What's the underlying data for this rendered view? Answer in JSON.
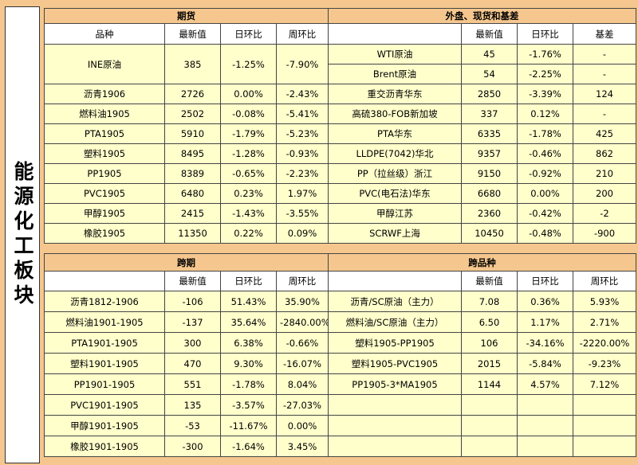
{
  "side_title": "能源化工板块",
  "colors": {
    "up": "#ff0000",
    "down": "#009933",
    "header_bg": "#f5c78e",
    "row_bg": "#ffffcc"
  },
  "futures": {
    "title": "期货",
    "columns": [
      "品种",
      "最新值",
      "日环比",
      "周环比"
    ],
    "rows": [
      [
        "INE原油",
        "385",
        "-1.25%",
        "-7.90%"
      ],
      [
        "沥青1906",
        "2726",
        "0.00%",
        "-2.43%"
      ],
      [
        "燃料油1905",
        "2502",
        "-0.08%",
        "-5.41%"
      ],
      [
        "PTA1905",
        "5910",
        "-1.79%",
        "-5.23%"
      ],
      [
        "塑料1905",
        "8495",
        "-1.28%",
        "-0.93%"
      ],
      [
        "PP1905",
        "8389",
        "-0.65%",
        "-2.23%"
      ],
      [
        "PVC1905",
        "6480",
        "0.23%",
        "1.97%"
      ],
      [
        "甲醇1905",
        "2415",
        "-1.43%",
        "-3.55%"
      ],
      [
        "橡胶1905",
        "11350",
        "0.22%",
        "0.09%"
      ]
    ]
  },
  "spot": {
    "title": "外盘、现货和基差",
    "columns": [
      "",
      "最新值",
      "日环比",
      "基差"
    ],
    "rows": [
      [
        "WTI原油",
        "45",
        "-1.76%",
        "-"
      ],
      [
        "Brent原油",
        "54",
        "-2.25%",
        "-"
      ],
      [
        "重交沥青华东",
        "2850",
        "-3.39%",
        "124"
      ],
      [
        "高硫380-FOB新加坡",
        "337",
        "0.12%",
        "-"
      ],
      [
        "PTA华东",
        "6335",
        "-1.78%",
        "425"
      ],
      [
        "LLDPE(7042)华北",
        "9357",
        "-0.46%",
        "862"
      ],
      [
        "PP（拉丝级）浙江",
        "9150",
        "-0.92%",
        "210"
      ],
      [
        "PVC(电石法)华东",
        "6680",
        "0.00%",
        "200"
      ],
      [
        "甲醇江苏",
        "2360",
        "-0.42%",
        "-2"
      ],
      [
        "SCRWF上海",
        "10450",
        "-0.48%",
        "-900"
      ]
    ]
  },
  "spread": {
    "title": "跨期",
    "columns": [
      "",
      "最新值",
      "日环比",
      "周环比"
    ],
    "rows": [
      [
        "沥青1812-1906",
        "-106",
        "51.43%",
        "35.90%"
      ],
      [
        "燃料油1901-1905",
        "-137",
        "35.64%",
        "-2840.00%"
      ],
      [
        "PTA1901-1905",
        "300",
        "6.38%",
        "-0.66%"
      ],
      [
        "塑料1901-1905",
        "470",
        "9.30%",
        "-16.07%"
      ],
      [
        "PP1901-1905",
        "551",
        "-1.78%",
        "8.04%"
      ],
      [
        "PVC1901-1905",
        "135",
        "-3.57%",
        "-27.03%"
      ],
      [
        "甲醇1901-1905",
        "-53",
        "-11.67%",
        "0.00%"
      ],
      [
        "橡胶1901-1905",
        "-300",
        "-1.64%",
        "3.45%"
      ]
    ]
  },
  "cross": {
    "title": "跨品种",
    "columns": [
      "",
      "最新值",
      "日环比",
      "周环比"
    ],
    "rows": [
      [
        "沥青/SC原油（主力）",
        "7.08",
        "0.36%",
        "5.93%"
      ],
      [
        "燃料油/SC原油（主力）",
        "6.50",
        "1.17%",
        "2.71%"
      ],
      [
        "塑料1905-PP1905",
        "106",
        "-34.16%",
        "-2220.00%"
      ],
      [
        "塑料1905-PVC1905",
        "2015",
        "-5.84%",
        "-9.23%"
      ],
      [
        "PP1905-3*MA1905",
        "1144",
        "4.57%",
        "7.12%"
      ],
      [
        "",
        "",
        "",
        ""
      ],
      [
        "",
        "",
        "",
        ""
      ],
      [
        "",
        "",
        "",
        ""
      ]
    ]
  }
}
